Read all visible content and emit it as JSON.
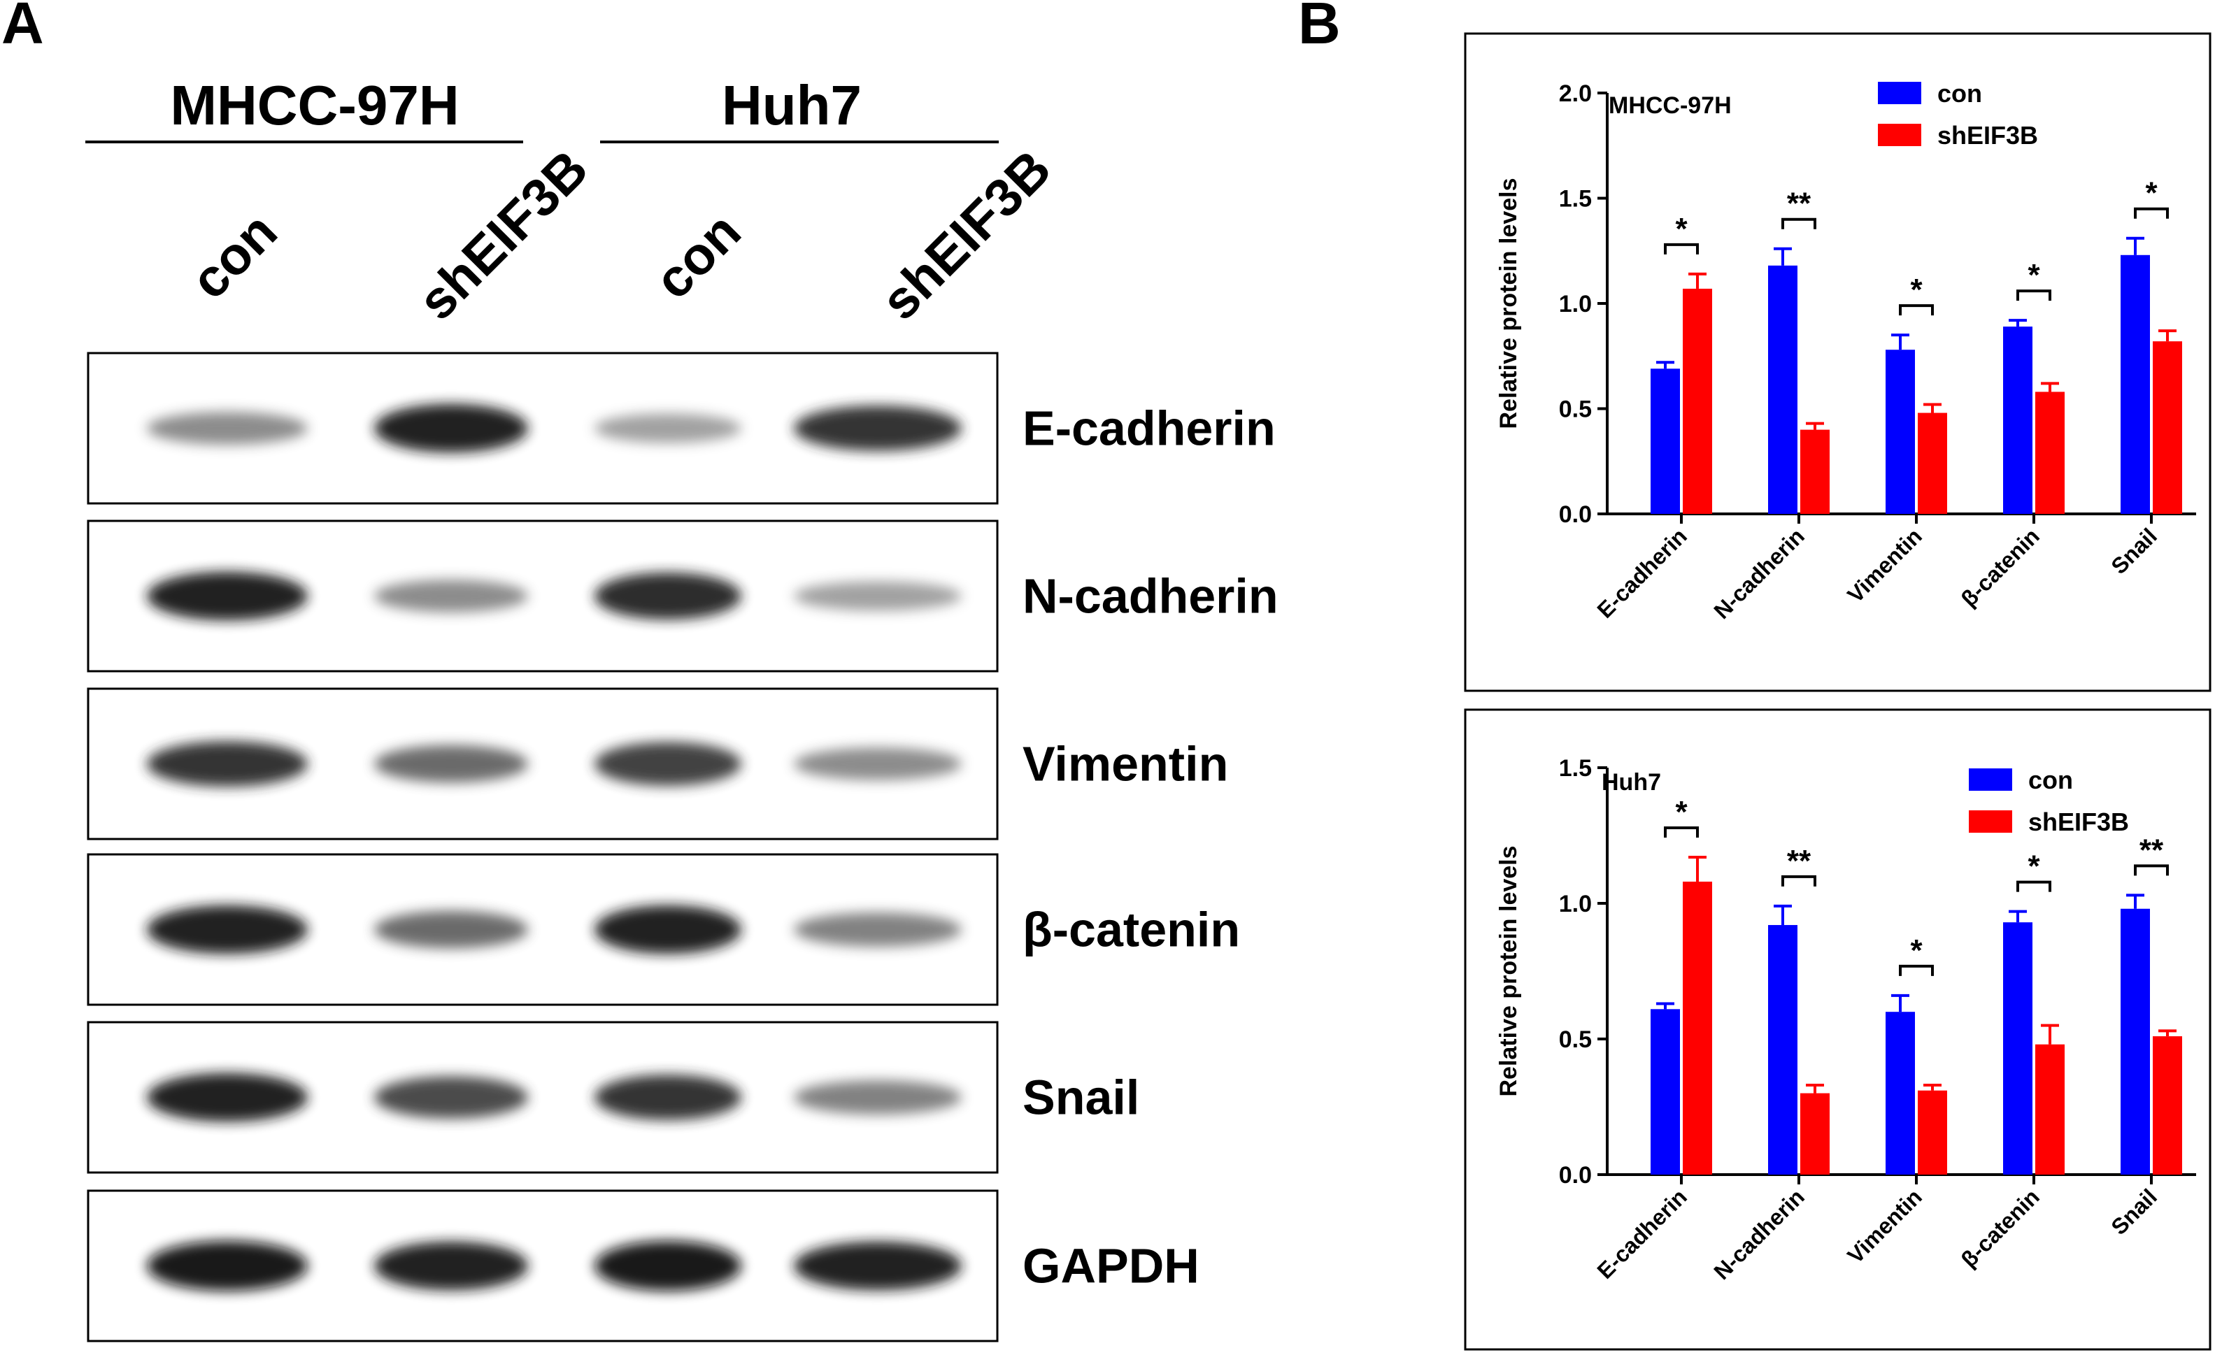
{
  "panel_a": {
    "letter": "A",
    "groups": [
      "MHCC-97H",
      "Huh7"
    ],
    "lanes": [
      "con",
      "shEIF3B",
      "con",
      "shEIF3B"
    ],
    "blots": [
      {
        "protein": "E-cadherin",
        "intensities": [
          0.45,
          0.95,
          0.35,
          0.85
        ]
      },
      {
        "protein": "N-cadherin",
        "intensities": [
          0.95,
          0.45,
          0.9,
          0.35
        ]
      },
      {
        "protein": "Vimentin",
        "intensities": [
          0.85,
          0.6,
          0.8,
          0.45
        ]
      },
      {
        "protein": "β-catenin",
        "intensities": [
          0.95,
          0.6,
          0.95,
          0.5
        ]
      },
      {
        "protein": "Snail",
        "intensities": [
          0.95,
          0.75,
          0.85,
          0.5
        ]
      },
      {
        "protein": "GAPDH",
        "intensities": [
          1.0,
          0.95,
          1.0,
          0.95
        ]
      }
    ]
  },
  "panel_b": {
    "letter": "B"
  },
  "chart_data": [
    {
      "type": "bar",
      "title": "MHCC-97H",
      "ylabel": "Relative protein levels",
      "ylim": [
        0,
        2.0
      ],
      "yticks": [
        "0.0",
        "0.5",
        "1.0",
        "1.5",
        "2.0"
      ],
      "categories": [
        "E-cadherin",
        "N-cadherin",
        "Vimentin",
        "β-catenin",
        "Snail"
      ],
      "series": [
        {
          "name": "con",
          "color": "#0000ff",
          "values": [
            0.69,
            1.18,
            0.78,
            0.89,
            1.23
          ],
          "errors": [
            0.03,
            0.08,
            0.07,
            0.03,
            0.08
          ]
        },
        {
          "name": "shEIF3B",
          "color": "#ff0000",
          "values": [
            1.07,
            0.4,
            0.48,
            0.58,
            0.82
          ],
          "errors": [
            0.07,
            0.03,
            0.04,
            0.04,
            0.05
          ]
        }
      ],
      "significance": [
        "*",
        "**",
        "*",
        "*",
        "*"
      ],
      "legend": "top-right"
    },
    {
      "type": "bar",
      "title": "Huh7",
      "ylabel": "Relative protein levels",
      "ylim": [
        0,
        1.5
      ],
      "yticks": [
        "0.0",
        "0.5",
        "1.0",
        "1.5"
      ],
      "categories": [
        "E-cadherin",
        "N-cadherin",
        "Vimentin",
        "β-catenin",
        "Snail"
      ],
      "series": [
        {
          "name": "con",
          "color": "#0000ff",
          "values": [
            0.61,
            0.92,
            0.6,
            0.93,
            0.98
          ],
          "errors": [
            0.02,
            0.07,
            0.06,
            0.04,
            0.05
          ]
        },
        {
          "name": "shEIF3B",
          "color": "#ff0000",
          "values": [
            1.08,
            0.3,
            0.31,
            0.48,
            0.51
          ],
          "errors": [
            0.09,
            0.03,
            0.02,
            0.07,
            0.02
          ]
        }
      ],
      "significance": [
        "*",
        "**",
        "*",
        "*",
        "**"
      ],
      "legend": "top-right"
    }
  ]
}
